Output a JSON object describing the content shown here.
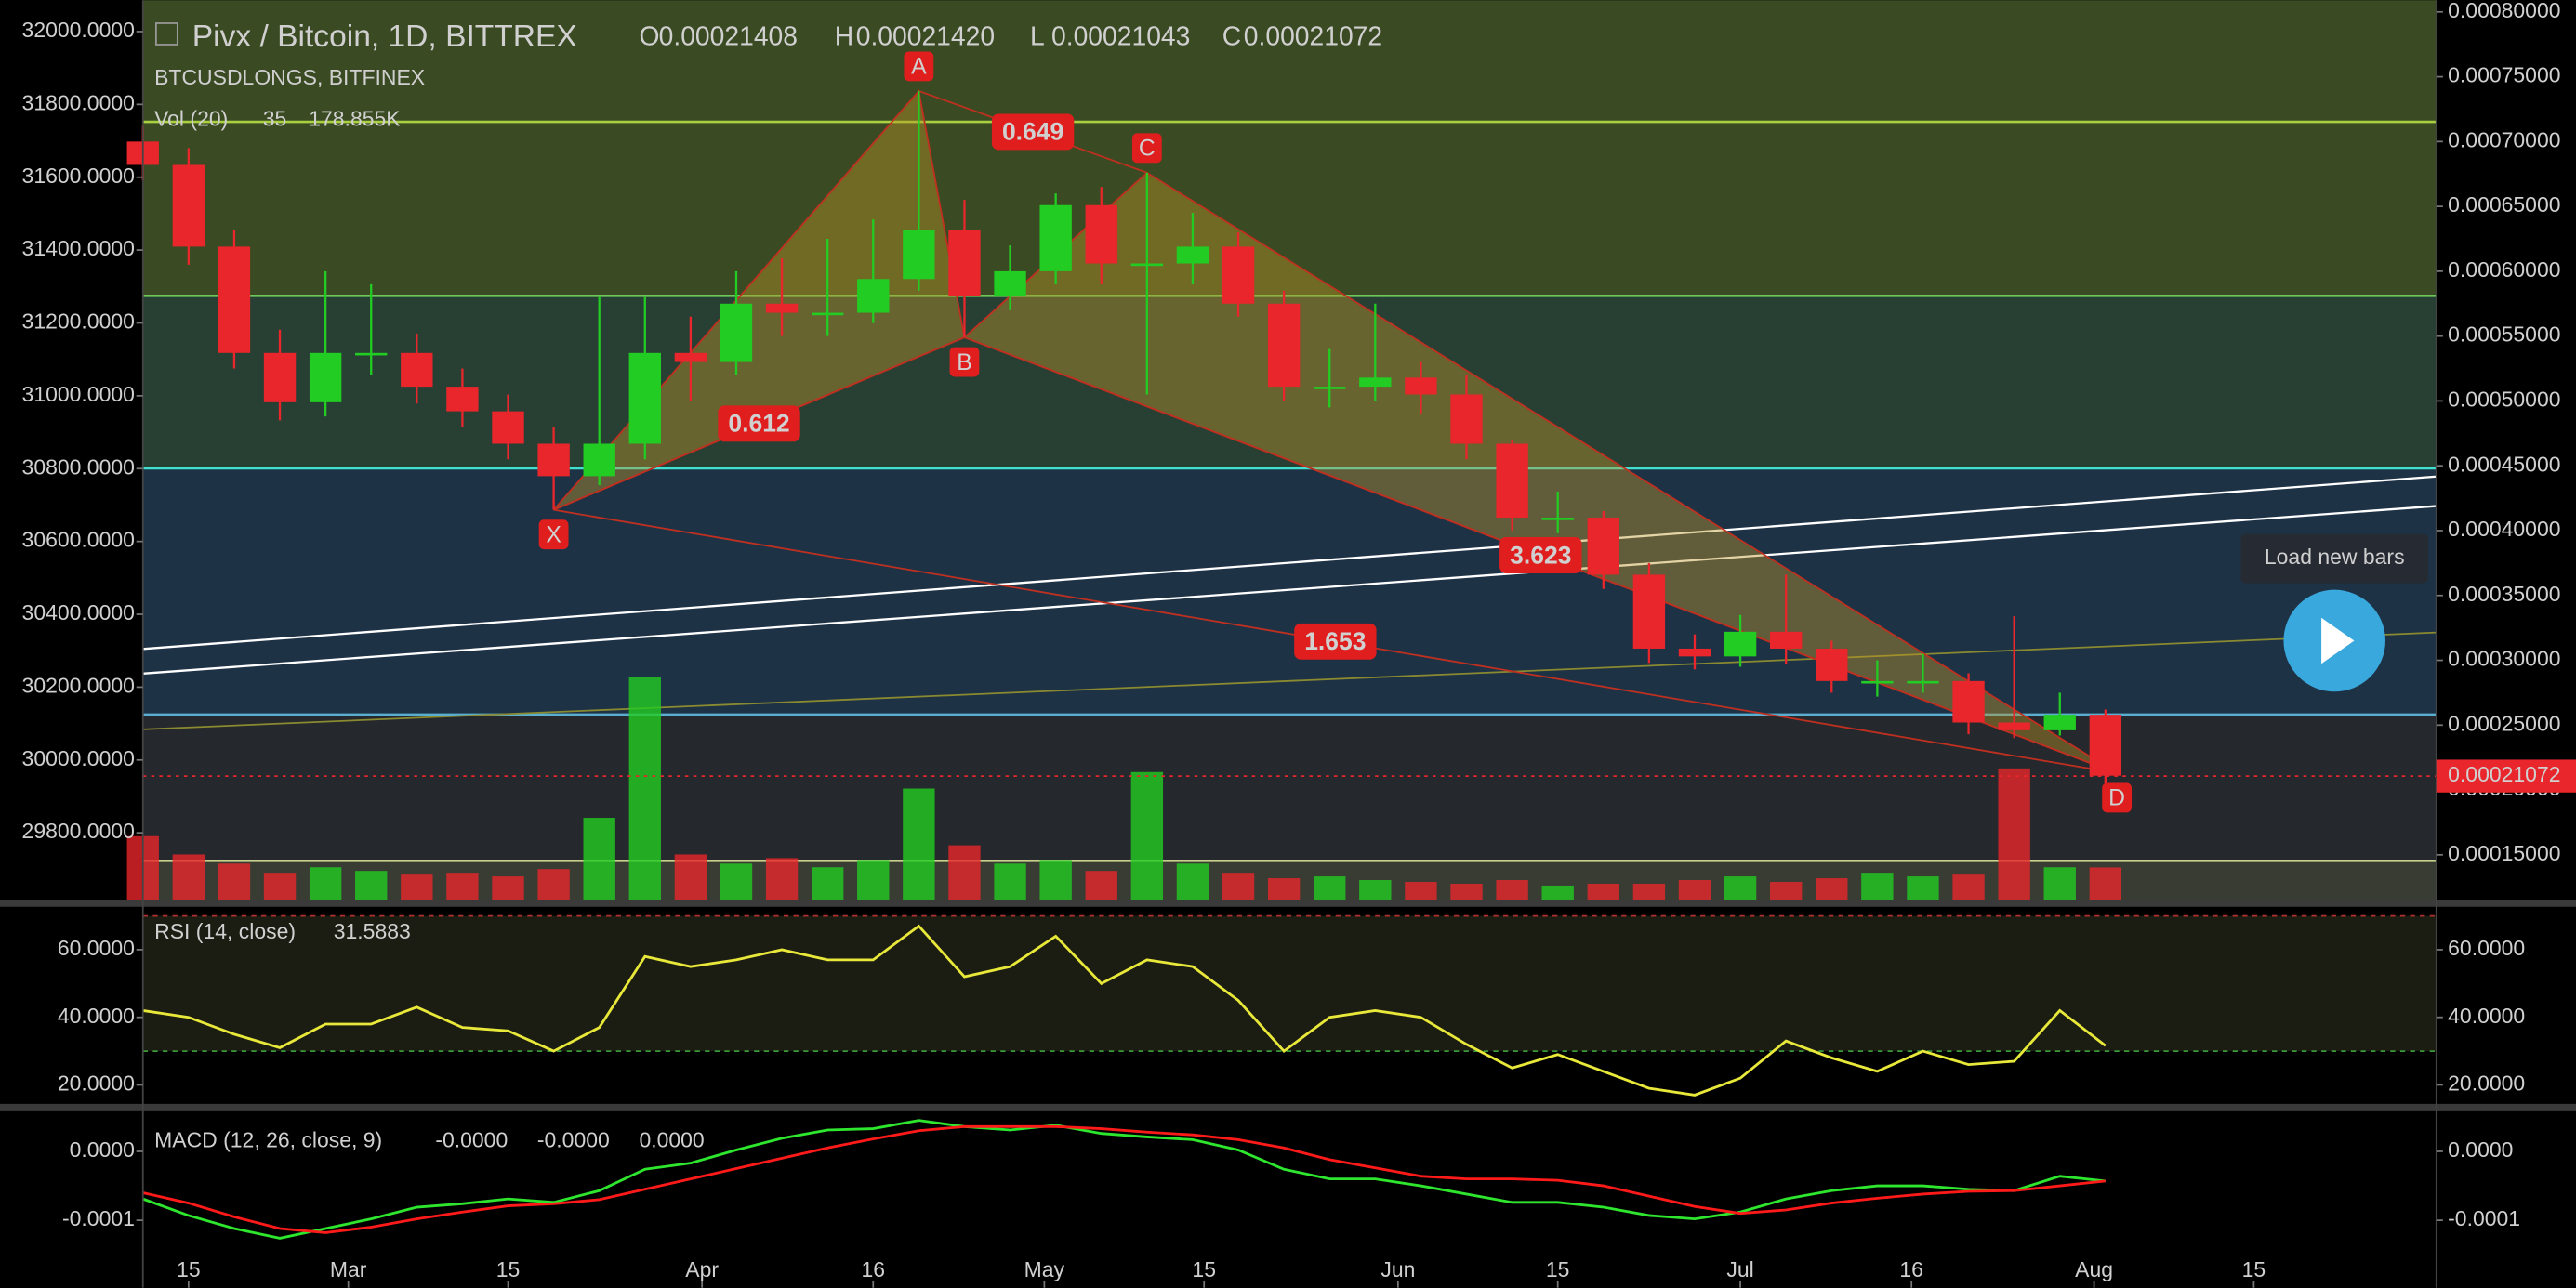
{
  "chart_data": [
    {
      "type": "candlestick",
      "title": "Pivx / Bitcoin, 1D, BITTREX",
      "subtitle": "BTCUSDLONGS, BITFINEX",
      "ohlc": [
        {
          "name": "O",
          "text": "0.00021408"
        },
        {
          "name": "H",
          "text": "0.00021420"
        },
        {
          "name": "L",
          "text": "0.00021043"
        },
        {
          "name": "C",
          "text": "0.00021072"
        }
      ],
      "last_price": {
        "value": 0.00021072,
        "label": "0.00021072"
      },
      "x": [
        "02-11",
        "02-15",
        "02-19",
        "02-23",
        "02-27",
        "03-03",
        "03-07",
        "03-11",
        "03-15",
        "03-19",
        "03-23",
        "03-27",
        "03-31",
        "04-04",
        "04-08",
        "04-12",
        "04-16",
        "04-20",
        "04-24",
        "04-28",
        "05-02",
        "05-06",
        "05-10",
        "05-14",
        "05-18",
        "05-22",
        "05-26",
        "05-30",
        "06-03",
        "06-07",
        "06-11",
        "06-15",
        "06-19",
        "06-23",
        "06-27",
        "07-01",
        "07-05",
        "07-09",
        "07-13",
        "07-17",
        "07-21",
        "07-25",
        "07-29",
        "08-02"
      ],
      "open": [
        0.0007,
        0.000682,
        0.000619,
        0.000537,
        0.000499,
        0.000537,
        0.000537,
        0.000511,
        0.000492,
        0.000467,
        0.000442,
        0.000467,
        0.000537,
        0.00053,
        0.000575,
        0.000568,
        0.000568,
        0.000594,
        0.000632,
        0.000581,
        0.0006,
        0.000651,
        0.000606,
        0.000606,
        0.000619,
        0.000575,
        0.000511,
        0.000511,
        0.000518,
        0.000505,
        0.000467,
        0.00041,
        0.00041,
        0.000366,
        0.000309,
        0.000303,
        0.000322,
        0.000309,
        0.000284,
        0.000284,
        0.000284,
        0.000252,
        0.000246,
        0.000258
      ],
      "high": [
        0.000712,
        0.000695,
        0.000632,
        0.000555,
        0.0006,
        0.00059,
        0.000552,
        0.000525,
        0.000505,
        0.00048,
        0.00058,
        0.00058,
        0.000565,
        0.0006,
        0.00061,
        0.000625,
        0.00064,
        0.000739,
        0.000655,
        0.00062,
        0.00066,
        0.000665,
        0.000676,
        0.000645,
        0.00063,
        0.000585,
        0.00054,
        0.000575,
        0.00053,
        0.00052,
        0.00047,
        0.00043,
        0.000415,
        0.000375,
        0.00032,
        0.000335,
        0.000366,
        0.000315,
        0.0003,
        0.000305,
        0.00029,
        0.000334,
        0.000275,
        0.000262
      ],
      "low": [
        0.00067,
        0.000605,
        0.000525,
        0.000485,
        0.000488,
        0.00052,
        0.000498,
        0.00048,
        0.000455,
        0.000416,
        0.000435,
        0.000455,
        0.0005,
        0.00052,
        0.00055,
        0.00055,
        0.00056,
        0.000585,
        0.000549,
        0.00057,
        0.00059,
        0.00059,
        0.000505,
        0.00059,
        0.000565,
        0.0005,
        0.000495,
        0.0005,
        0.00049,
        0.000455,
        0.0004,
        0.000398,
        0.000355,
        0.000298,
        0.000293,
        0.000295,
        0.000297,
        0.000275,
        0.000272,
        0.000275,
        0.000243,
        0.00024,
        0.000242,
        0.000205
      ],
      "close": [
        0.000682,
        0.000619,
        0.000537,
        0.000499,
        0.000537,
        0.000537,
        0.000511,
        0.000492,
        0.000467,
        0.000442,
        0.000467,
        0.000537,
        0.00053,
        0.000575,
        0.000568,
        0.000568,
        0.000594,
        0.000632,
        0.000581,
        0.0006,
        0.000651,
        0.000606,
        0.000606,
        0.000619,
        0.000575,
        0.000511,
        0.000511,
        0.000518,
        0.000505,
        0.000467,
        0.00041,
        0.00041,
        0.000366,
        0.000309,
        0.000303,
        0.000322,
        0.000309,
        0.000284,
        0.000284,
        0.000284,
        0.000252,
        0.000246,
        0.000258,
        0.000211
      ],
      "up_color": "#22cc22",
      "down_color": "#e8262b",
      "xlim": [
        "02-11",
        "08-31"
      ],
      "xticks": [
        {
          "value": "02-15",
          "label": "15"
        },
        {
          "value": "03-01",
          "label": "Mar"
        },
        {
          "value": "03-15",
          "label": "15"
        },
        {
          "value": "04-01",
          "label": "Apr"
        },
        {
          "value": "04-16",
          "label": "16"
        },
        {
          "value": "05-01",
          "label": "May"
        },
        {
          "value": "05-15",
          "label": "15"
        },
        {
          "value": "06-01",
          "label": "Jun"
        },
        {
          "value": "06-15",
          "label": "15"
        },
        {
          "value": "07-01",
          "label": "Jul"
        },
        {
          "value": "07-16",
          "label": "16"
        },
        {
          "value": "08-01",
          "label": "Aug"
        },
        {
          "value": "08-15",
          "label": "15"
        }
      ],
      "ylim": [
        0.000115,
        0.000809
      ],
      "yticks": [
        {
          "value": 0.0008,
          "label": "0.00080000"
        },
        {
          "value": 0.00075,
          "label": "0.00075000"
        },
        {
          "value": 0.0007,
          "label": "0.00070000"
        },
        {
          "value": 0.00065,
          "label": "0.00065000"
        },
        {
          "value": 0.0006,
          "label": "0.00060000"
        },
        {
          "value": 0.00055,
          "label": "0.00055000"
        },
        {
          "value": 0.0005,
          "label": "0.00050000"
        },
        {
          "value": 0.00045,
          "label": "0.00045000"
        },
        {
          "value": 0.0004,
          "label": "0.00040000"
        },
        {
          "value": 0.00035,
          "label": "0.00035000"
        },
        {
          "value": 0.0003,
          "label": "0.00030000"
        },
        {
          "value": 0.00025,
          "label": "0.00025000"
        },
        {
          "value": 0.0002,
          "label": "0.00020000"
        },
        {
          "value": 0.00015,
          "label": "0.00015000"
        }
      ],
      "y2lim": [
        29615,
        32086
      ],
      "y2ticks": [
        {
          "value": 32000,
          "label": "32000.0000"
        },
        {
          "value": 31800,
          "label": "31800.0000"
        },
        {
          "value": 31600,
          "label": "31600.0000"
        },
        {
          "value": 31400,
          "label": "31400.0000"
        },
        {
          "value": 31200,
          "label": "31200.0000"
        },
        {
          "value": 31000,
          "label": "31000.0000"
        },
        {
          "value": 30800,
          "label": "30800.0000"
        },
        {
          "value": 30600,
          "label": "30600.0000"
        },
        {
          "value": 30400,
          "label": "30400.0000"
        },
        {
          "value": 30200,
          "label": "30200.0000"
        },
        {
          "value": 30000,
          "label": "30000.0000"
        },
        {
          "value": 29800,
          "label": "29800.0000"
        }
      ],
      "volume": {
        "name": "Vol (20)",
        "length_text": "35",
        "values": [
          350000,
          250000,
          200000,
          150000,
          180000,
          160000,
          140000,
          150000,
          130000,
          170000,
          450000,
          1220000,
          250000,
          200000,
          230000,
          180000,
          220000,
          610000,
          300000,
          200000,
          220000,
          160000,
          700000,
          200000,
          150000,
          120000,
          130000,
          110000,
          100000,
          90000,
          110000,
          80000,
          90000,
          90000,
          110000,
          130000,
          100000,
          120000,
          150000,
          130000,
          140000,
          720000,
          180000,
          178855
        ],
        "value_labels": [
          null,
          null,
          null,
          null,
          null,
          null,
          null,
          null,
          null,
          null,
          null,
          null,
          null,
          null,
          null,
          null,
          null,
          null,
          null,
          null,
          null,
          null,
          null,
          null,
          null,
          null,
          null,
          null,
          null,
          null,
          null,
          null,
          null,
          null,
          null,
          null,
          null,
          null,
          null,
          null,
          null,
          null,
          null,
          "178.855K"
        ]
      },
      "pattern": {
        "points": [
          {
            "label": "X",
            "x": "03-19",
            "y": 0.000416
          },
          {
            "label": "A",
            "x": "04-20",
            "y": 0.000739
          },
          {
            "label": "B",
            "x": "04-24",
            "y": 0.000549
          },
          {
            "label": "C",
            "x": "05-10",
            "y": 0.000676
          },
          {
            "label": "D",
            "x": "08-03",
            "y": 0.000213
          }
        ],
        "ratios": [
          0.649,
          0.612,
          3.623,
          1.653
        ]
      }
    },
    {
      "type": "line",
      "title": "RSI (14, close)",
      "x": [
        "02-11",
        "02-15",
        "02-19",
        "02-23",
        "02-27",
        "03-03",
        "03-07",
        "03-11",
        "03-15",
        "03-19",
        "03-23",
        "03-27",
        "03-31",
        "04-04",
        "04-08",
        "04-12",
        "04-16",
        "04-20",
        "04-24",
        "04-28",
        "05-02",
        "05-06",
        "05-10",
        "05-14",
        "05-18",
        "05-22",
        "05-26",
        "05-30",
        "06-03",
        "06-07",
        "06-11",
        "06-15",
        "06-19",
        "06-23",
        "06-27",
        "07-01",
        "07-05",
        "07-09",
        "07-13",
        "07-17",
        "07-21",
        "07-25",
        "07-29",
        "08-02"
      ],
      "series": [
        {
          "color": "#e8e83a",
          "values": [
            42,
            40,
            35,
            31,
            38,
            38,
            43,
            37,
            36,
            30,
            37,
            58,
            55,
            57,
            60,
            57,
            57,
            67,
            52,
            55,
            64,
            50,
            57,
            55,
            45,
            30,
            40,
            42,
            40,
            32,
            25,
            29,
            24,
            19,
            17,
            22,
            33,
            28,
            24,
            30,
            26,
            27,
            42,
            31.5883
          ]
        }
      ],
      "levels": [
        30,
        70
      ],
      "ylim": [
        14.4,
        72.7
      ],
      "yticks": [
        {
          "value": 60,
          "label": "60.0000"
        },
        {
          "value": 40,
          "label": "40.0000"
        },
        {
          "value": 20,
          "label": "20.0000"
        }
      ]
    },
    {
      "type": "line",
      "title": "MACD (12, 26, close, 9)",
      "readouts": [
        {
          "text": "-0.0000",
          "color": "#f0a050"
        },
        {
          "text": "-0.0000",
          "color": "#2ee62e"
        },
        {
          "text": "0.0000",
          "color": "#ff3030"
        }
      ],
      "x": [
        "02-11",
        "02-15",
        "02-19",
        "02-23",
        "02-27",
        "03-03",
        "03-07",
        "03-11",
        "03-15",
        "03-19",
        "03-23",
        "03-27",
        "03-31",
        "04-04",
        "04-08",
        "04-12",
        "04-16",
        "04-20",
        "04-24",
        "04-28",
        "05-02",
        "05-06",
        "05-10",
        "05-14",
        "05-18",
        "05-22",
        "05-26",
        "05-30",
        "06-03",
        "06-07",
        "06-11",
        "06-15",
        "06-19",
        "06-23",
        "06-27",
        "07-01",
        "07-05",
        "07-09",
        "07-13",
        "07-17",
        "07-21",
        "07-25",
        "07-29",
        "08-02"
      ],
      "series": [
        {
          "color": "#2ee62e",
          "values": [
            -6.9e-05,
            -9.3e-05,
            -0.000112,
            -0.000126,
            -0.000112,
            -9.8e-05,
            -8.1e-05,
            -7.6e-05,
            -6.9e-05,
            -7.4e-05,
            -5.7e-05,
            -2.6e-05,
            -1.7e-05,
            2e-06,
            1.9e-05,
            3.1e-05,
            3.3e-05,
            4.5e-05,
            3.6e-05,
            3.1e-05,
            3.8e-05,
            2.6e-05,
            2.1e-05,
            1.7e-05,
            2e-06,
            -2.6e-05,
            -4e-05,
            -4e-05,
            -5e-05,
            -6.2e-05,
            -7.4e-05,
            -7.4e-05,
            -8.1e-05,
            -9.3e-05,
            -9.8e-05,
            -8.8e-05,
            -6.9e-05,
            -5.7e-05,
            -5e-05,
            -5e-05,
            -5.5e-05,
            -5.7e-05,
            -3.6e-05,
            -4.3e-05
          ]
        },
        {
          "color": "#ff1a1a",
          "values": [
            -6e-05,
            -7.5e-05,
            -9.5e-05,
            -0.000112,
            -0.000118,
            -0.00011,
            -9.8e-05,
            -8.8e-05,
            -7.9e-05,
            -7.6e-05,
            -7e-05,
            -5.5e-05,
            -4e-05,
            -2.5e-05,
            -1e-05,
            5e-06,
            1.8e-05,
            3e-05,
            3.6e-05,
            3.6e-05,
            3.6e-05,
            3.3e-05,
            2.8e-05,
            2.4e-05,
            1.7e-05,
            5e-06,
            -1.2e-05,
            -2.4e-05,
            -3.6e-05,
            -4e-05,
            -4e-05,
            -4.2e-05,
            -5e-05,
            -6.5e-05,
            -8e-05,
            -9e-05,
            -8.5e-05,
            -7.5e-05,
            -6.8e-05,
            -6.2e-05,
            -5.8e-05,
            -5.7e-05,
            -5e-05,
            -4.3e-05
          ]
        }
      ],
      "ylim": [
        -0.000198,
        5.95e-05
      ],
      "yticks": [
        {
          "value": 0,
          "label": "0.0000"
        },
        {
          "value": -0.0001,
          "label": "-0.0001"
        }
      ]
    }
  ],
  "ui": {
    "tooltip": "Load new bars"
  }
}
